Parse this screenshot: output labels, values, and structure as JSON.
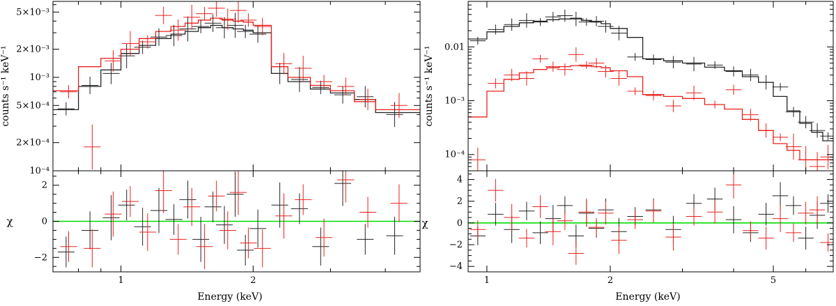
{
  "chart_data": [
    {
      "type": "scatter",
      "subtype": "x-ray spectrum with folded model and residuals",
      "x_axis": {
        "label": "Energy (keV)",
        "scale": "log",
        "range": [
          0.7,
          4.8
        ],
        "ticks": [
          1,
          2
        ],
        "tick_labels": [
          "1",
          "2"
        ]
      },
      "top_panel": {
        "y_axis": {
          "label": "counts s⁻¹ keV⁻¹",
          "scale": "log",
          "range": [
            0.0001,
            0.0065
          ],
          "ticks": [
            0.0001,
            0.0002,
            0.0005,
            0.001,
            0.002,
            0.005
          ],
          "tick_labels": [
            "10⁻⁴",
            "2×10⁻⁴",
            "5×10⁻⁴",
            "10⁻³",
            "2×10⁻³",
            "5×10⁻³"
          ]
        },
        "model_black": {
          "edges": [
            0.7,
            0.8,
            0.9,
            1.0,
            1.1,
            1.2,
            1.3,
            1.4,
            1.5,
            1.6,
            1.7,
            1.8,
            1.9,
            2.0,
            2.2,
            2.4,
            2.7,
            3.0,
            3.4,
            3.8,
            4.8
          ],
          "values": [
            0.00045,
            0.0008,
            0.0012,
            0.0018,
            0.0022,
            0.0026,
            0.0029,
            0.0031,
            0.0034,
            0.0036,
            0.0034,
            0.0033,
            0.0032,
            0.003,
            0.0011,
            0.0009,
            0.00075,
            0.00068,
            0.00058,
            0.00042
          ]
        },
        "model_red": {
          "edges": [
            0.7,
            0.8,
            0.9,
            1.0,
            1.1,
            1.2,
            1.3,
            1.4,
            1.5,
            1.6,
            1.7,
            1.8,
            1.9,
            2.0,
            2.2,
            2.4,
            2.7,
            3.0,
            3.4,
            3.8,
            4.8
          ],
          "values": [
            0.00072,
            0.0013,
            0.0016,
            0.002,
            0.0026,
            0.0031,
            0.0035,
            0.0038,
            0.0041,
            0.0043,
            0.0041,
            0.004,
            0.0039,
            0.0036,
            0.0013,
            0.001,
            0.00082,
            0.00072,
            0.00055,
            0.00045
          ]
        },
        "data_black": [
          [
            0.75,
            0.00046
          ],
          [
            0.85,
            0.00082
          ],
          [
            0.95,
            0.0011
          ],
          [
            1.03,
            0.0017
          ],
          [
            1.12,
            0.0021
          ],
          [
            1.22,
            0.0027
          ],
          [
            1.32,
            0.0028
          ],
          [
            1.42,
            0.0033
          ],
          [
            1.52,
            0.0035
          ],
          [
            1.62,
            0.0038
          ],
          [
            1.72,
            0.0034
          ],
          [
            1.82,
            0.0036
          ],
          [
            1.92,
            0.0031
          ],
          [
            2.05,
            0.0029
          ],
          [
            2.3,
            0.0011
          ],
          [
            2.55,
            0.00095
          ],
          [
            2.85,
            0.00078
          ],
          [
            3.2,
            0.00065
          ],
          [
            3.6,
            0.00062
          ],
          [
            4.2,
            0.0004
          ]
        ],
        "data_red": [
          [
            0.76,
            0.0007
          ],
          [
            0.86,
            0.00018
          ],
          [
            0.96,
            0.0015
          ],
          [
            1.05,
            0.0023
          ],
          [
            1.15,
            0.0024
          ],
          [
            1.25,
            0.0046
          ],
          [
            1.35,
            0.0032
          ],
          [
            1.45,
            0.0044
          ],
          [
            1.55,
            0.0048
          ],
          [
            1.65,
            0.0055
          ],
          [
            1.75,
            0.0042
          ],
          [
            1.85,
            0.0052
          ],
          [
            1.95,
            0.0041
          ],
          [
            2.1,
            0.0035
          ],
          [
            2.35,
            0.0014
          ],
          [
            2.6,
            0.00125
          ],
          [
            2.9,
            0.0009
          ],
          [
            3.25,
            0.0008
          ],
          [
            3.65,
            0.00058
          ],
          [
            4.3,
            0.0005
          ]
        ]
      },
      "bottom_panel": {
        "y_axis": {
          "label": "χ",
          "range": [
            -2.8,
            2.8
          ],
          "ticks": [
            -2,
            0,
            2
          ],
          "tick_labels": [
            "−2",
            "0",
            "2"
          ]
        },
        "zero_line_color": "#00dd00",
        "residuals_black": [
          [
            0.75,
            -1.7
          ],
          [
            0.85,
            -0.5
          ],
          [
            0.95,
            0.2
          ],
          [
            1.03,
            0.9
          ],
          [
            1.12,
            -0.3
          ],
          [
            1.22,
            0.6
          ],
          [
            1.32,
            0.1
          ],
          [
            1.42,
            1.2
          ],
          [
            1.52,
            -1.0
          ],
          [
            1.62,
            0.8
          ],
          [
            1.72,
            -0.2
          ],
          [
            1.82,
            1.5
          ],
          [
            1.92,
            -1.6
          ],
          [
            2.05,
            -0.4
          ],
          [
            2.3,
            0.9
          ],
          [
            2.55,
            0.7
          ],
          [
            2.85,
            -1.4
          ],
          [
            3.2,
            2.1
          ],
          [
            3.6,
            -1.0
          ],
          [
            4.2,
            -0.8
          ]
        ],
        "residuals_red": [
          [
            0.76,
            -1.4
          ],
          [
            0.86,
            -1.5
          ],
          [
            0.96,
            0.4
          ],
          [
            1.05,
            1.1
          ],
          [
            1.15,
            -0.6
          ],
          [
            1.25,
            1.7
          ],
          [
            1.35,
            -1.0
          ],
          [
            1.45,
            0.8
          ],
          [
            1.55,
            -1.4
          ],
          [
            1.65,
            1.4
          ],
          [
            1.75,
            -0.5
          ],
          [
            1.85,
            1.6
          ],
          [
            1.95,
            -1.2
          ],
          [
            2.1,
            -1.5
          ],
          [
            2.35,
            0.3
          ],
          [
            2.6,
            1.2
          ],
          [
            2.9,
            -0.9
          ],
          [
            3.25,
            2.3
          ],
          [
            3.65,
            0.5
          ],
          [
            4.3,
            1.0
          ]
        ]
      }
    },
    {
      "type": "scatter",
      "subtype": "x-ray spectrum with folded model and residuals",
      "x_axis": {
        "label": "Energy (keV)",
        "scale": "log",
        "range": [
          0.9,
          7.0
        ],
        "ticks": [
          1,
          2,
          5
        ],
        "tick_labels": [
          "1",
          "2",
          "5"
        ]
      },
      "top_panel": {
        "y_axis": {
          "label": "counts s⁻¹ keV⁻¹",
          "scale": "log",
          "range": [
            5e-05,
            0.07
          ],
          "ticks": [
            0.0001,
            0.001,
            0.01
          ],
          "tick_labels": [
            "10⁻⁴",
            "10⁻³",
            "0.01"
          ]
        },
        "model_black": {
          "edges": [
            0.9,
            1.0,
            1.1,
            1.2,
            1.3,
            1.4,
            1.5,
            1.6,
            1.7,
            1.8,
            1.9,
            2.0,
            2.2,
            2.4,
            2.7,
            3.0,
            3.4,
            3.8,
            4.2,
            4.6,
            5.0,
            5.4,
            5.8,
            6.2,
            6.6,
            7.0
          ],
          "values": [
            0.014,
            0.019,
            0.024,
            0.028,
            0.03,
            0.032,
            0.033,
            0.034,
            0.031,
            0.029,
            0.027,
            0.022,
            0.015,
            0.006,
            0.0055,
            0.005,
            0.0042,
            0.0036,
            0.0028,
            0.0022,
            0.0012,
            0.00065,
            0.00038,
            0.00026,
            0.00018
          ]
        },
        "model_red": {
          "edges": [
            0.9,
            1.0,
            1.1,
            1.2,
            1.3,
            1.4,
            1.5,
            1.6,
            1.7,
            1.8,
            1.9,
            2.0,
            2.2,
            2.4,
            2.7,
            3.0,
            3.4,
            3.8,
            4.2,
            4.6,
            5.0,
            5.4,
            5.8,
            6.2,
            6.6,
            7.0
          ],
          "values": [
            0.0005,
            0.0015,
            0.0025,
            0.0033,
            0.0038,
            0.0041,
            0.0043,
            0.0045,
            0.0044,
            0.0043,
            0.0041,
            0.0036,
            0.0028,
            0.0013,
            0.0012,
            0.0011,
            0.00085,
            0.0007,
            0.00045,
            0.00028,
            0.00016,
            0.00012,
            8e-05,
            8e-05,
            8e-05
          ]
        },
        "data_black": [
          [
            0.95,
            0.013
          ],
          [
            1.05,
            0.021
          ],
          [
            1.15,
            0.026
          ],
          [
            1.25,
            0.031
          ],
          [
            1.35,
            0.029
          ],
          [
            1.45,
            0.036
          ],
          [
            1.55,
            0.038
          ],
          [
            1.65,
            0.033
          ],
          [
            1.75,
            0.029
          ],
          [
            1.85,
            0.03
          ],
          [
            1.95,
            0.024
          ],
          [
            2.1,
            0.018
          ],
          [
            2.3,
            0.0065
          ],
          [
            2.55,
            0.0058
          ],
          [
            2.85,
            0.0052
          ],
          [
            3.2,
            0.0048
          ],
          [
            3.6,
            0.0046
          ],
          [
            4.0,
            0.0035
          ],
          [
            4.4,
            0.003
          ],
          [
            4.8,
            0.0022
          ],
          [
            5.2,
            0.0018
          ],
          [
            5.6,
            0.00062
          ],
          [
            6.0,
            0.0004
          ],
          [
            6.4,
            0.00028
          ],
          [
            6.8,
            0.00022
          ]
        ],
        "data_red": [
          [
            0.95,
            8e-05
          ],
          [
            1.05,
            0.0021
          ],
          [
            1.15,
            0.003
          ],
          [
            1.25,
            0.0026
          ],
          [
            1.35,
            0.006
          ],
          [
            1.45,
            0.0043
          ],
          [
            1.55,
            0.0038
          ],
          [
            1.65,
            0.0072
          ],
          [
            1.75,
            0.0046
          ],
          [
            1.85,
            0.005
          ],
          [
            1.95,
            0.0035
          ],
          [
            2.1,
            0.0026
          ],
          [
            2.3,
            0.0015
          ],
          [
            2.55,
            0.00125
          ],
          [
            2.85,
            0.0008
          ],
          [
            3.2,
            0.0014
          ],
          [
            3.6,
            0.00085
          ],
          [
            4.0,
            0.0016
          ],
          [
            4.4,
            0.00055
          ],
          [
            4.8,
            0.00028
          ],
          [
            5.2,
            0.00021
          ],
          [
            5.6,
            0.00014
          ],
          [
            6.0,
            8e-05
          ],
          [
            6.4,
            6e-05
          ],
          [
            6.8,
            9e-05
          ]
        ]
      },
      "bottom_panel": {
        "y_axis": {
          "label": "χ",
          "range": [
            -4.5,
            4.8
          ],
          "ticks": [
            -4,
            -2,
            0,
            2,
            4
          ],
          "tick_labels": [
            "−4",
            "−2",
            "0",
            "2",
            "4"
          ]
        },
        "zero_line_color": "#00dd00",
        "residuals_black": [
          [
            0.95,
            -1.2
          ],
          [
            1.05,
            0.8
          ],
          [
            1.15,
            -0.6
          ],
          [
            1.25,
            1.1
          ],
          [
            1.35,
            -0.9
          ],
          [
            1.45,
            0.4
          ],
          [
            1.55,
            1.6
          ],
          [
            1.65,
            -1.2
          ],
          [
            1.75,
            0.9
          ],
          [
            1.85,
            -0.5
          ],
          [
            1.95,
            1.2
          ],
          [
            2.1,
            -0.8
          ],
          [
            2.3,
            0.6
          ],
          [
            2.55,
            1.2
          ],
          [
            2.85,
            -0.6
          ],
          [
            3.2,
            1.8
          ],
          [
            3.6,
            2.2
          ],
          [
            4.0,
            0.3
          ],
          [
            4.4,
            -0.9
          ],
          [
            4.8,
            0.8
          ],
          [
            5.2,
            2.5
          ],
          [
            5.6,
            1.6
          ],
          [
            6.0,
            -1.4
          ],
          [
            6.4,
            0.7
          ],
          [
            6.8,
            1.8
          ]
        ],
        "residuals_red": [
          [
            0.95,
            -0.6
          ],
          [
            1.05,
            3.0
          ],
          [
            1.15,
            0.5
          ],
          [
            1.25,
            -1.4
          ],
          [
            1.35,
            1.5
          ],
          [
            1.45,
            -0.8
          ],
          [
            1.55,
            0.2
          ],
          [
            1.65,
            -2.8
          ],
          [
            1.75,
            1.0
          ],
          [
            1.85,
            -0.4
          ],
          [
            1.95,
            0.9
          ],
          [
            2.1,
            -1.6
          ],
          [
            2.3,
            0.3
          ],
          [
            2.55,
            1.1
          ],
          [
            2.85,
            -1.3
          ],
          [
            3.2,
            0.6
          ],
          [
            3.6,
            1.0
          ],
          [
            4.0,
            3.5
          ],
          [
            4.4,
            -0.7
          ],
          [
            4.8,
            -1.4
          ],
          [
            5.2,
            0.4
          ],
          [
            5.6,
            -0.9
          ],
          [
            6.0,
            0.9
          ],
          [
            6.4,
            1.2
          ],
          [
            6.8,
            -1.8
          ]
        ]
      }
    }
  ]
}
